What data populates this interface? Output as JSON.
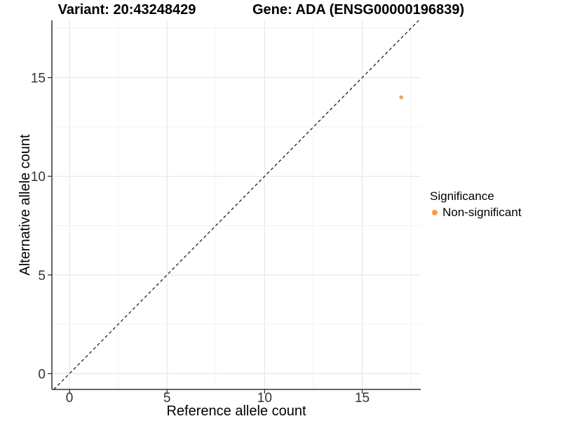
{
  "chart_data": {
    "type": "scatter",
    "title_variant": "Variant: 20:43248429",
    "title_gene": "Gene: ADA (ENSG00000196839)",
    "xlabel": "Reference allele count",
    "ylabel": "Alternative allele count",
    "xlim": [
      -0.9,
      18.0
    ],
    "ylim": [
      -0.8,
      17.9
    ],
    "xticks": [
      0,
      5,
      10,
      15
    ],
    "yticks": [
      0,
      5,
      10,
      15
    ],
    "xminor": [
      2.5,
      7.5,
      12.5,
      17.5
    ],
    "yminor": [
      2.5,
      7.5,
      12.5,
      17.5
    ],
    "grid": "major+minor",
    "grid_major_color": "#e4e4e4",
    "grid_minor_color": "#f1f1f1",
    "axis_color": "#333333",
    "reference_line": {
      "type": "identity",
      "style": "dashed",
      "color": "#111111"
    },
    "series": [
      {
        "name": "Non-significant",
        "color": "#F9A03A",
        "points": [
          {
            "x": 17,
            "y": 14
          }
        ]
      }
    ],
    "legend": {
      "title": "Significance",
      "position": "right",
      "entries": [
        {
          "label": "Non-significant",
          "color": "#F9A03A"
        }
      ]
    }
  }
}
